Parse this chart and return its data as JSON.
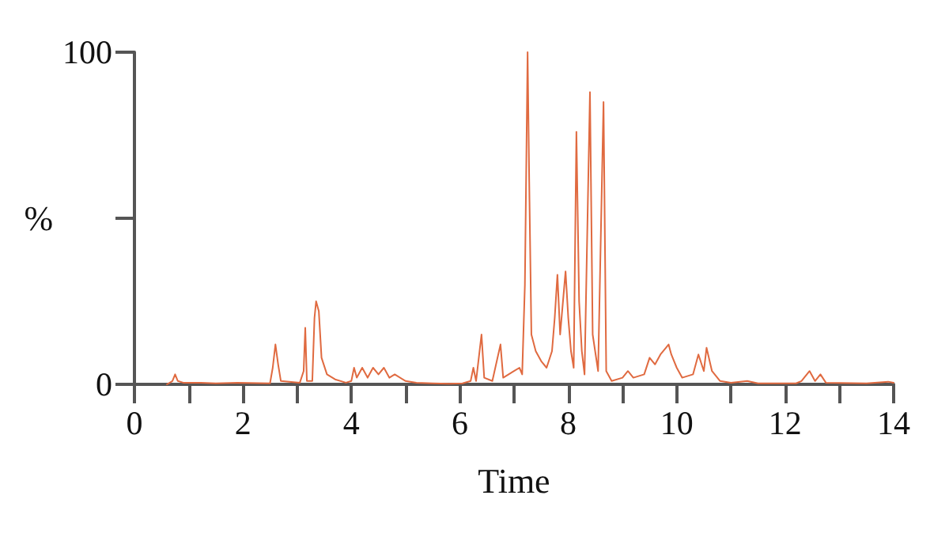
{
  "chart_data": {
    "type": "line",
    "xlabel": "Time",
    "ylabel": "%",
    "x": [
      0.6,
      0.7,
      0.75,
      0.8,
      0.9,
      1.2,
      1.5,
      1.9,
      2.5,
      2.55,
      2.6,
      2.65,
      2.7,
      3.05,
      3.12,
      3.15,
      3.18,
      3.28,
      3.32,
      3.35,
      3.4,
      3.45,
      3.55,
      3.7,
      3.9,
      4.0,
      4.05,
      4.1,
      4.2,
      4.3,
      4.4,
      4.5,
      4.6,
      4.7,
      4.8,
      5.0,
      5.2,
      5.5,
      5.8,
      6.05,
      6.2,
      6.25,
      6.3,
      6.4,
      6.45,
      6.6,
      6.75,
      6.8,
      6.9,
      7.0,
      7.1,
      7.15,
      7.2,
      7.25,
      7.28,
      7.32,
      7.4,
      7.5,
      7.6,
      7.7,
      7.75,
      7.8,
      7.85,
      7.95,
      8.0,
      8.05,
      8.1,
      8.15,
      8.2,
      8.25,
      8.3,
      8.4,
      8.45,
      8.55,
      8.65,
      8.7,
      8.8,
      9.0,
      9.1,
      9.2,
      9.4,
      9.5,
      9.6,
      9.7,
      9.8,
      9.85,
      9.9,
      10.0,
      10.1,
      10.3,
      10.4,
      10.5,
      10.55,
      10.65,
      10.8,
      11.0,
      11.3,
      11.5,
      12.2,
      12.3,
      12.45,
      12.55,
      12.65,
      12.75,
      13.5,
      13.9,
      14
    ],
    "series": [
      {
        "color": "#e06a40",
        "values": [
          0,
          1,
          3,
          1,
          0.5,
          0.5,
          0.3,
          0.5,
          0.3,
          5,
          12,
          6,
          1,
          0.5,
          4,
          17,
          1,
          1,
          20,
          25,
          22,
          8,
          3,
          1.5,
          0.5,
          1,
          5,
          2,
          5,
          2,
          5,
          3,
          5,
          2,
          3,
          1,
          0.5,
          0.3,
          0.2,
          0.3,
          1,
          5,
          1,
          15,
          2,
          1,
          12,
          2,
          3,
          4,
          5,
          3,
          30,
          100,
          61,
          15,
          10,
          7,
          5,
          10,
          20,
          33,
          15,
          34,
          20,
          10,
          5,
          76,
          25,
          10,
          3,
          88,
          15,
          4,
          85,
          4,
          1,
          2,
          4,
          2,
          3,
          8,
          6,
          9,
          11,
          12,
          9,
          5,
          2,
          3,
          9,
          4,
          11,
          4,
          1,
          0.5,
          1,
          0.3,
          0.3,
          1,
          4,
          1,
          3,
          0.5,
          0.3,
          0.8,
          0.5
        ]
      }
    ],
    "xlim": [
      0,
      14
    ],
    "xticks": [
      0,
      {
        "value": 1,
        "label": null
      },
      2,
      {
        "value": 3,
        "label": null
      },
      4,
      {
        "value": 5,
        "label": null
      },
      6,
      {
        "value": 7,
        "label": null
      },
      8,
      {
        "value": 9,
        "label": null
      },
      10,
      {
        "value": 11,
        "label": null
      },
      12,
      {
        "value": 13,
        "label": null
      },
      14
    ],
    "ylim": [
      0,
      100
    ],
    "yticks": [
      0,
      {
        "value": 50,
        "label": null
      },
      100
    ],
    "grid": false,
    "marker": "none",
    "line_style": "solid"
  }
}
